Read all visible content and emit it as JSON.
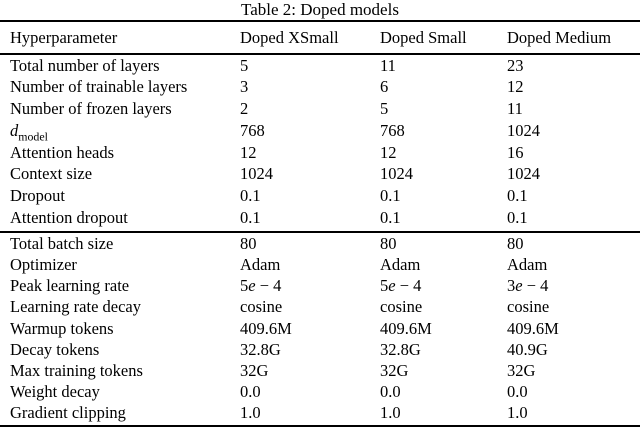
{
  "caption": "Table 2: Doped models",
  "columns": [
    "Hyperparameter",
    "Doped XSmall",
    "Doped Small",
    "Doped Medium"
  ],
  "colors": {
    "text": "#000000",
    "background": "#ffffff",
    "rule": "#000000"
  },
  "sections": [
    {
      "name": "architecture",
      "rows": [
        {
          "label": "Total number of layers",
          "values": [
            "5",
            "11",
            "23"
          ]
        },
        {
          "label": "Number of trainable layers",
          "values": [
            "3",
            "6",
            "12"
          ]
        },
        {
          "label": "Number of frozen layers",
          "values": [
            "2",
            "5",
            "11"
          ]
        },
        {
          "label": "d",
          "label_sub": "model",
          "label_italic": true,
          "values": [
            "768",
            "768",
            "1024"
          ]
        },
        {
          "label": "Attention heads",
          "values": [
            "12",
            "12",
            "16"
          ]
        },
        {
          "label": "Context size",
          "values": [
            "1024",
            "1024",
            "1024"
          ]
        },
        {
          "label": "Dropout",
          "values": [
            "0.1",
            "0.1",
            "0.1"
          ]
        },
        {
          "label": "Attention dropout",
          "values": [
            "0.1",
            "0.1",
            "0.1"
          ]
        }
      ]
    },
    {
      "name": "training",
      "rows": [
        {
          "label": "Total batch size",
          "values": [
            "80",
            "80",
            "80"
          ]
        },
        {
          "label": "Optimizer",
          "values": [
            "Adam",
            "Adam",
            "Adam"
          ]
        },
        {
          "label": "Peak learning rate",
          "values": [
            "5e − 4",
            "5e − 4",
            "3e − 4"
          ],
          "math_values": true
        },
        {
          "label": "Learning rate decay",
          "values": [
            "cosine",
            "cosine",
            "cosine"
          ]
        },
        {
          "label": "Warmup tokens",
          "values": [
            "409.6M",
            "409.6M",
            "409.6M"
          ]
        },
        {
          "label": "Decay tokens",
          "values": [
            "32.8G",
            "32.8G",
            "40.9G"
          ]
        },
        {
          "label": "Max training tokens",
          "values": [
            "32G",
            "32G",
            "32G"
          ]
        },
        {
          "label": "Weight decay",
          "values": [
            "0.0",
            "0.0",
            "0.0"
          ]
        },
        {
          "label": "Gradient clipping",
          "values": [
            "1.0",
            "1.0",
            "1.0"
          ]
        }
      ]
    }
  ]
}
